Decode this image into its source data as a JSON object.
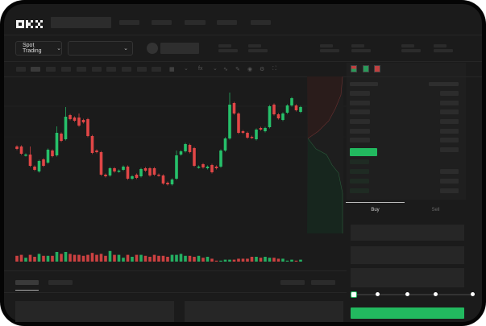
{
  "header": {
    "logo": "OKX",
    "market_dropdown": {
      "label": "Spot Trading",
      "icon": "chevron-down-icon"
    },
    "pair_dropdown": {
      "icon": "chevron-down-icon"
    }
  },
  "toolbar": {
    "icons": [
      "candle-type-icon",
      "chevron-down-icon",
      "indicator-icon",
      "chevron-down-icon",
      "line-tool-icon",
      "ruler-icon",
      "camera-icon",
      "settings-icon",
      "fullscreen-icon"
    ]
  },
  "order_panel": {
    "view_icons": [
      "orderbook-both-icon",
      "orderbook-buy-icon",
      "orderbook-sell-icon"
    ],
    "tabs": [
      {
        "label": "Buy",
        "active": true
      },
      {
        "label": "Sell",
        "active": false
      }
    ],
    "slider_level": 0
  },
  "colors": {
    "up": "#26c06a",
    "down": "#e04646",
    "background": "#1b1b1b",
    "accent": "#22b95f"
  },
  "chart_data": {
    "type": "candlestick",
    "candles": [
      [
        58,
        55
      ],
      [
        58,
        49
      ],
      [
        47,
        48
      ],
      [
        48,
        34
      ],
      [
        33,
        29
      ],
      [
        27,
        40
      ],
      [
        42,
        34
      ],
      [
        38,
        54
      ],
      [
        53,
        46
      ],
      [
        47,
        75
      ],
      [
        74,
        65
      ],
      [
        67,
        95
      ],
      [
        97,
        92
      ],
      [
        94,
        90
      ],
      [
        94,
        84
      ],
      [
        91,
        88
      ],
      [
        92,
        71
      ],
      [
        71,
        50
      ],
      [
        53,
        51
      ],
      [
        51,
        23
      ],
      [
        23,
        21
      ],
      [
        22,
        31
      ],
      [
        31,
        27
      ],
      [
        27,
        28
      ],
      [
        29,
        33
      ],
      [
        33,
        18
      ],
      [
        18,
        21
      ],
      [
        23,
        19
      ],
      [
        21,
        30
      ],
      [
        31,
        28
      ],
      [
        31,
        22
      ],
      [
        31,
        23
      ],
      [
        23,
        22
      ],
      [
        22,
        12
      ],
      [
        13,
        11
      ],
      [
        11,
        17
      ],
      [
        18,
        47
      ],
      [
        48,
        52
      ],
      [
        52,
        61
      ],
      [
        60,
        51
      ],
      [
        56,
        34
      ],
      [
        32,
        33
      ],
      [
        36,
        32
      ],
      [
        31,
        33
      ],
      [
        35,
        26
      ],
      [
        33,
        31
      ],
      [
        33,
        53
      ],
      [
        53,
        68
      ],
      [
        68,
        110
      ],
      [
        112,
        99
      ],
      [
        99,
        75
      ],
      [
        77,
        75
      ],
      [
        75,
        69
      ],
      [
        70,
        69
      ],
      [
        67,
        79
      ],
      [
        81,
        79
      ],
      [
        77,
        81
      ],
      [
        82,
        108
      ],
      [
        110,
        98
      ],
      [
        98,
        93
      ],
      [
        91,
        99
      ],
      [
        100,
        109
      ],
      [
        109,
        118
      ],
      [
        109,
        103
      ],
      [
        101,
        107
      ]
    ],
    "wick_highs": {
      "3": 10,
      "9": 8,
      "11": 12,
      "14": 5,
      "36": 6,
      "48": 15
    },
    "volume": [
      6,
      7,
      4,
      7,
      5,
      8,
      6,
      6,
      6,
      10,
      8,
      10,
      8,
      7,
      7,
      6,
      7,
      9,
      7,
      8,
      6,
      11,
      7,
      7,
      4,
      7,
      5,
      7,
      7,
      6,
      5,
      7,
      6,
      6,
      5,
      7,
      7,
      8,
      6,
      6,
      5,
      6,
      4,
      5,
      3,
      1,
      1,
      2,
      2,
      2,
      3,
      3,
      3,
      5,
      5,
      4,
      5,
      4,
      4,
      3,
      3,
      1,
      2,
      1,
      2
    ]
  }
}
